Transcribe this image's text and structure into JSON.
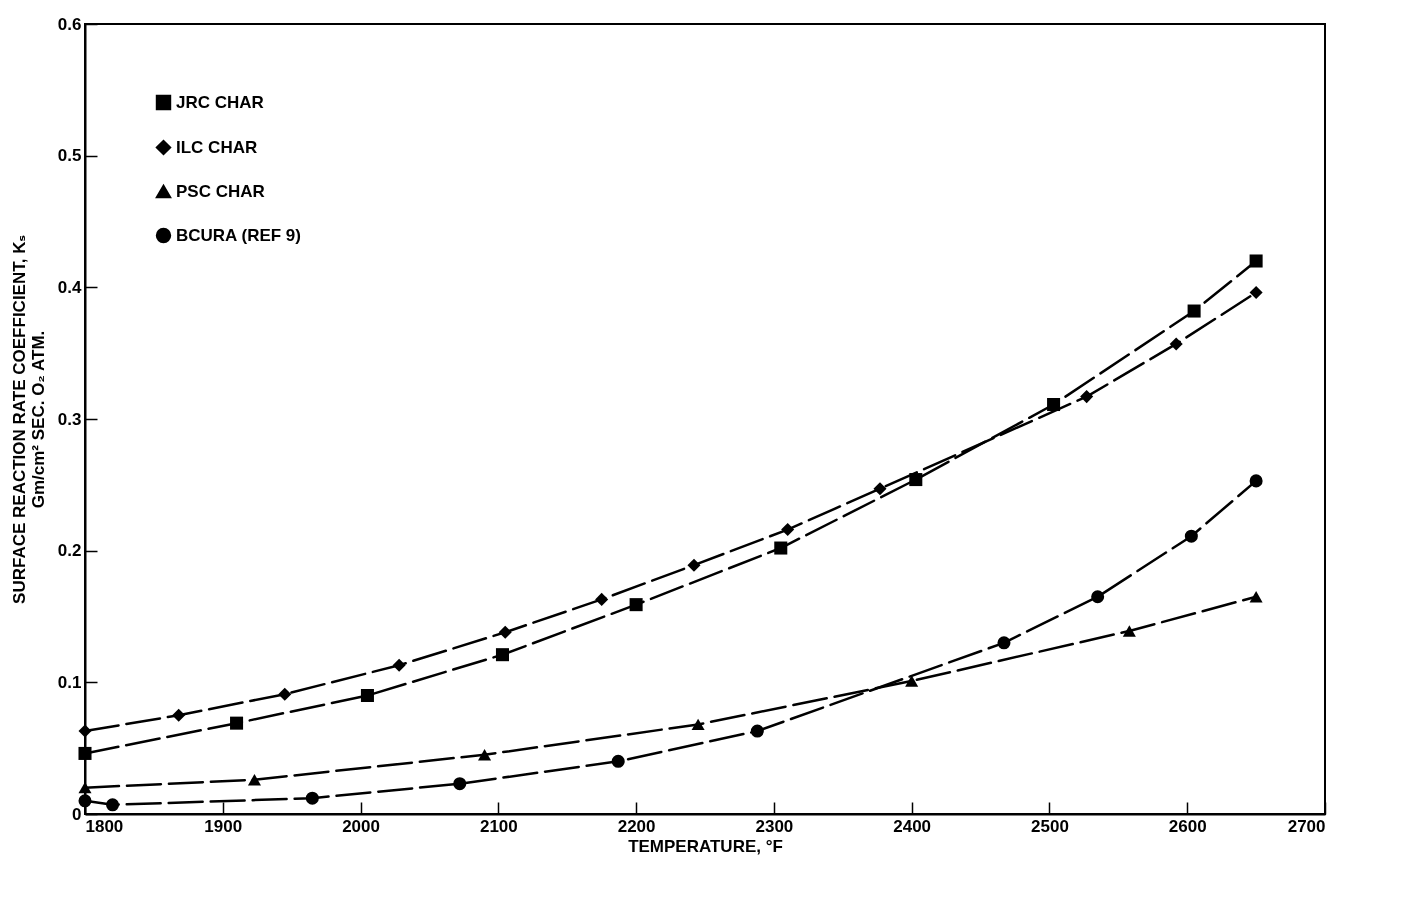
{
  "chart_data": {
    "type": "line",
    "xlabel": "TEMPERATURE, °F",
    "ylabel": "SURFACE REACTION RATE COEFFICIENT, Kₛ\nGm/cm² SEC. O₂ ATM.",
    "xlim": [
      1800,
      2700
    ],
    "ylim": [
      0,
      0.6
    ],
    "xticks": [
      1800,
      1900,
      2000,
      2100,
      2200,
      2300,
      2400,
      2500,
      2600,
      2700
    ],
    "yticks": [
      {
        "value": 0,
        "label": "0"
      },
      0.1,
      0.2,
      0.3,
      0.4,
      0.5,
      0.6
    ],
    "grid": false,
    "legend": "top left",
    "line_style": "dashed",
    "series": [
      {
        "name": "JRC CHAR",
        "color": "#000000",
        "marker": "square",
        "x": [
          1800,
          1910,
          2005,
          2103,
          2200,
          2305,
          2403,
          2503,
          2605,
          2650
        ],
        "values": [
          0.046,
          0.069,
          0.09,
          0.121,
          0.159,
          0.202,
          0.254,
          0.311,
          0.382,
          0.42
        ]
      },
      {
        "name": "ILC CHAR",
        "color": "#000000",
        "marker": "diamond",
        "x": [
          1800,
          1868,
          1945,
          2028,
          2105,
          2175,
          2242,
          2310,
          2377,
          2527,
          2592,
          2650
        ],
        "values": [
          0.063,
          0.075,
          0.091,
          0.113,
          0.138,
          0.163,
          0.189,
          0.216,
          0.247,
          0.317,
          0.357,
          0.396
        ]
      },
      {
        "name": "PSC CHAR",
        "color": "#000000",
        "marker": "triangle",
        "x": [
          1800,
          1923,
          2090,
          2245,
          2400,
          2558,
          2650
        ],
        "values": [
          0.02,
          0.026,
          0.045,
          0.068,
          0.101,
          0.139,
          0.165
        ]
      },
      {
        "name": "BCURA (REF 9)",
        "color": "#000000",
        "marker": "circle",
        "x": [
          1800,
          1820,
          1965,
          2072,
          2187,
          2288,
          2467,
          2535,
          2603,
          2650
        ],
        "values": [
          0.01,
          0.007,
          0.012,
          0.023,
          0.04,
          0.063,
          0.13,
          0.165,
          0.211,
          0.253
        ]
      }
    ]
  }
}
